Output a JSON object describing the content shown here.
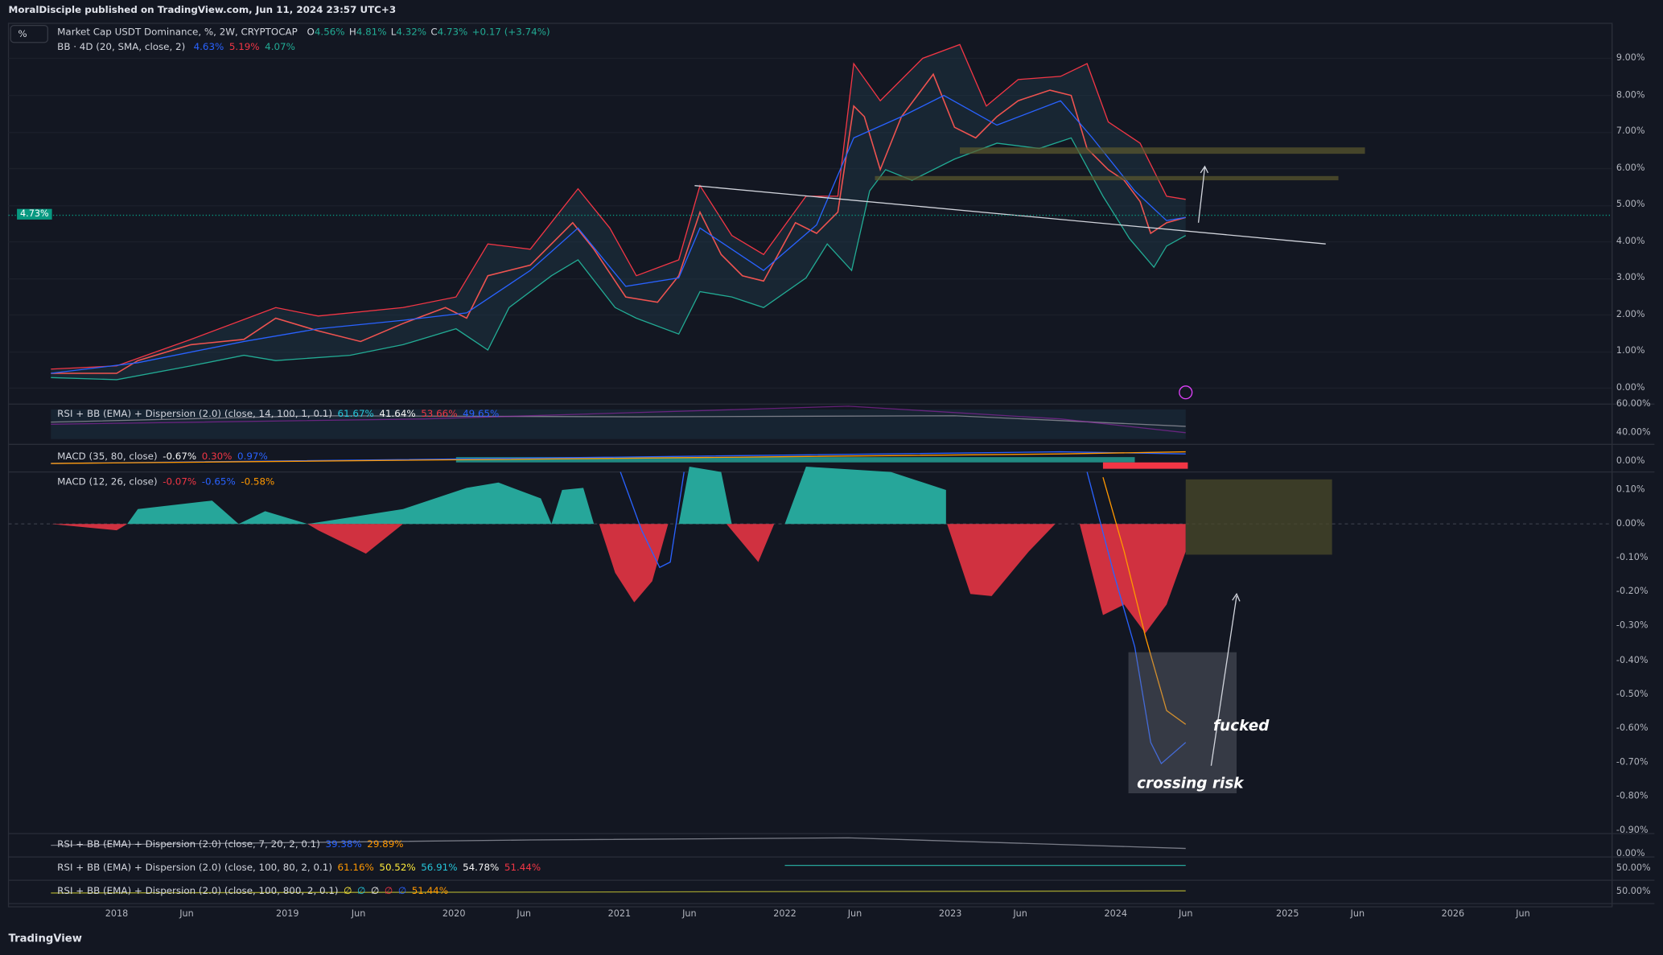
{
  "header": {
    "publisher": "MoralDisciple published on TradingView.com, Jun 11, 2024 23:57 UTC+3",
    "scale_button": "%"
  },
  "legend": {
    "symbol": "Market Cap USDT Dominance, %, 2W, CRYPTOCAP",
    "ohlc": [
      {
        "label": "O",
        "value": "4.56%"
      },
      {
        "label": "H",
        "value": "4.81%"
      },
      {
        "label": "L",
        "value": "4.32%"
      },
      {
        "label": "C",
        "value": "4.73%"
      }
    ],
    "change": "+0.17 (+3.74%)",
    "bb": {
      "title": "BB · 4D (20, SMA, close, 2)",
      "values": [
        "4.63%",
        "5.19%",
        "4.07%"
      ]
    }
  },
  "price_label": "4.73%",
  "main_axis": [
    "9.00%",
    "8.00%",
    "7.00%",
    "6.00%",
    "5.00%",
    "4.00%",
    "3.00%",
    "2.00%",
    "1.00%",
    "0.00%"
  ],
  "panes": [
    {
      "title": "RSI + BB (EMA) + Dispersion (2.0) (close, 14, 100, 1, 0.1)",
      "values": [
        "61.67%",
        "41.64%",
        "53.66%",
        "49.65%"
      ],
      "axis": [
        "60.00%",
        "40.00%"
      ]
    },
    {
      "title": "MACD (35, 80, close)",
      "values": [
        "-0.67%",
        "0.30%",
        "0.97%"
      ],
      "axis": [
        "0.00%"
      ]
    },
    {
      "title": "MACD (12, 26, close)",
      "values": [
        "-0.07%",
        "-0.65%",
        "-0.58%"
      ],
      "axis": [
        "0.10%",
        "0.00%",
        "-0.10%",
        "-0.20%",
        "-0.30%",
        "-0.40%",
        "-0.50%",
        "-0.60%",
        "-0.70%",
        "-0.80%",
        "-0.90%"
      ]
    },
    {
      "title": "RSI + BB (EMA) + Dispersion (2.0) (close, 7, 20, 2, 0.1)",
      "values": [
        "39.38%",
        "29.89%"
      ],
      "axis": [
        "0.00%"
      ]
    },
    {
      "title": "RSI + BB (EMA) + Dispersion (2.0) (close, 100, 80, 2, 0.1)",
      "values": [
        "61.16%",
        "50.52%",
        "56.91%",
        "54.78%",
        "51.44%"
      ],
      "axis": [
        "50.00%"
      ]
    },
    {
      "title": "RSI + BB (EMA) + Dispersion (2.0) (close, 100, 800, 2, 0.1)",
      "values": [
        "∅",
        "∅",
        "∅",
        "∅",
        "∅",
        "51.44%"
      ],
      "axis": [
        "50.00%"
      ]
    }
  ],
  "x_axis": [
    "2018",
    "Jun",
    "2019",
    "Jun",
    "2020",
    "Jun",
    "2021",
    "Jun",
    "2022",
    "Jun",
    "2023",
    "Jun",
    "2024",
    "Jun",
    "2025",
    "Jun",
    "2026",
    "Jun"
  ],
  "annotations": [
    "fucked",
    "crossing risk"
  ],
  "footer": "TradingView"
}
